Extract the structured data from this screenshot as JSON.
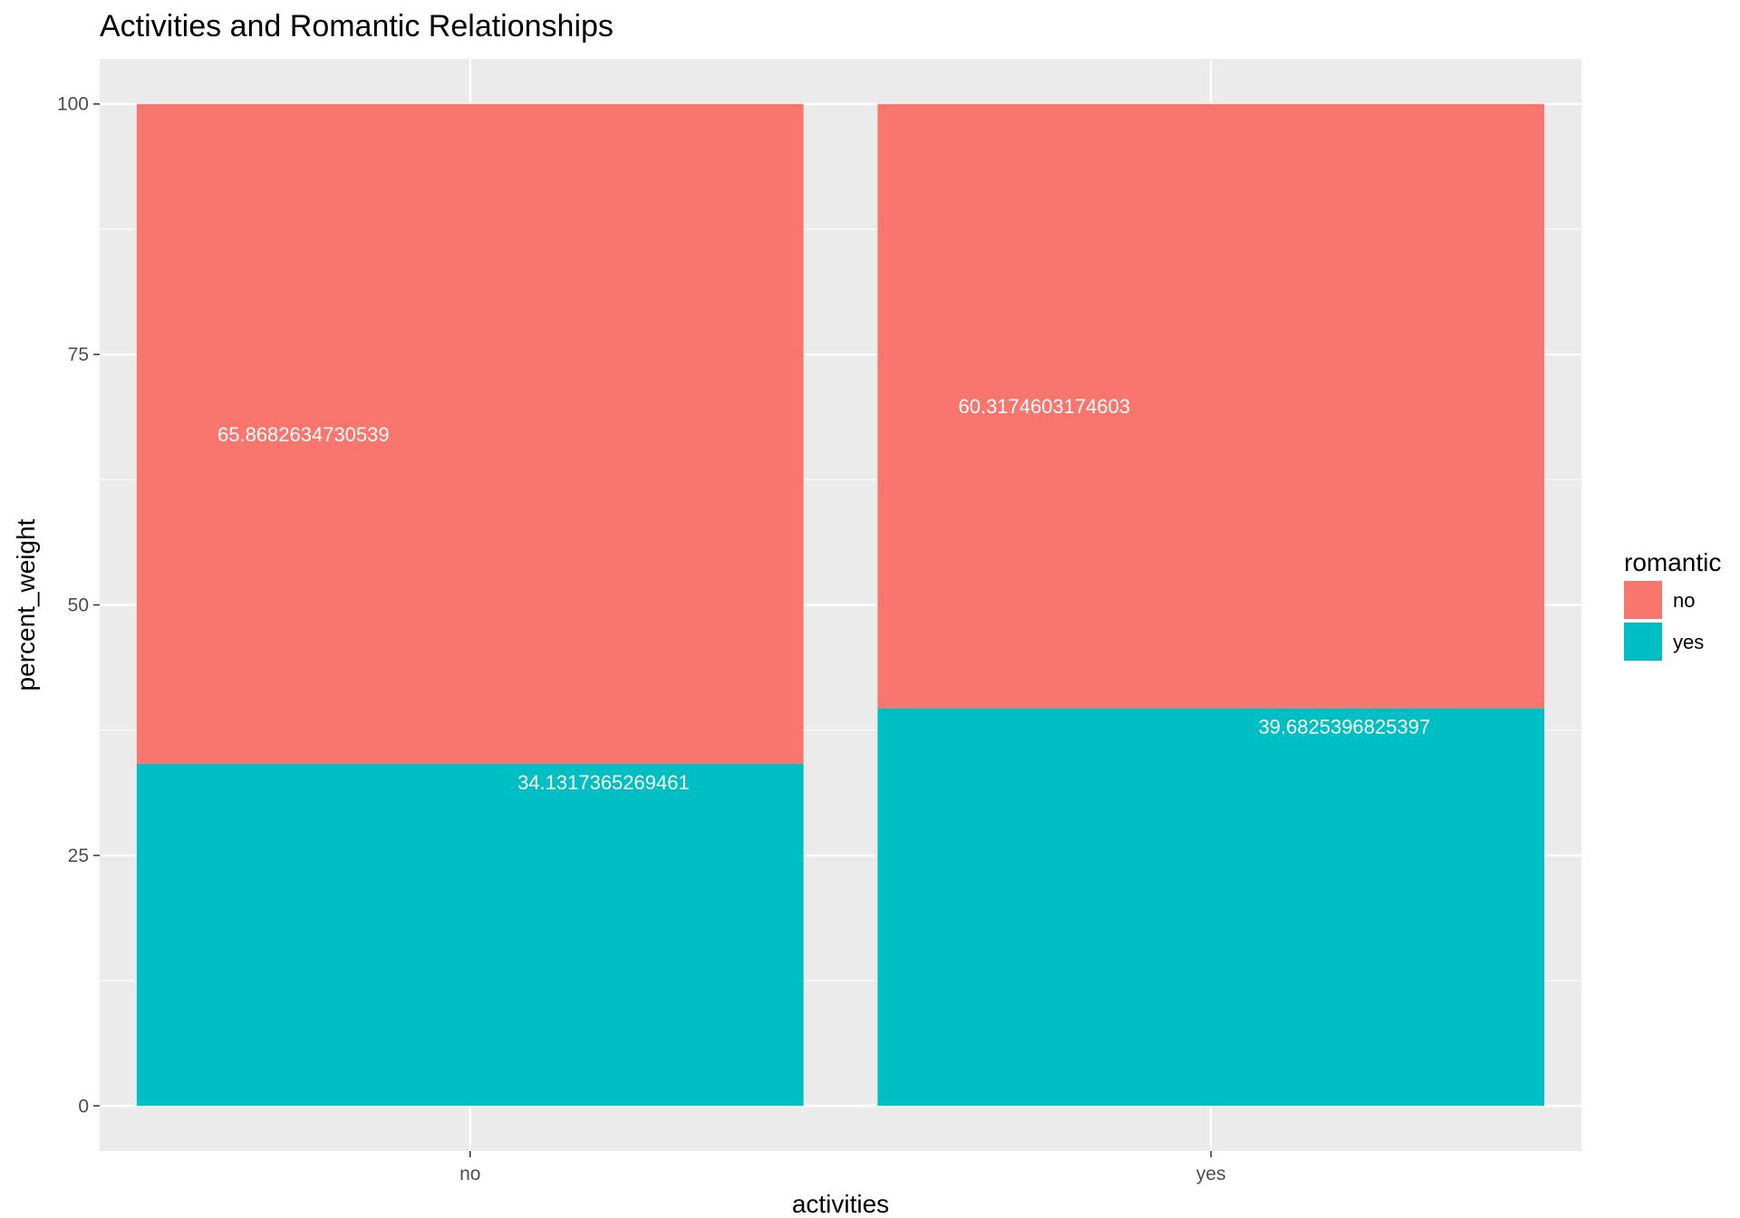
{
  "chart_data": {
    "type": "bar",
    "stacked": true,
    "title": "Activities and Romantic Relationships",
    "xlabel": "activities",
    "ylabel": "percent_weight",
    "categories": [
      "no",
      "yes"
    ],
    "ylim": [
      -4.5,
      104.5
    ],
    "yticks": [
      0,
      25,
      50,
      75,
      100
    ],
    "grid": true,
    "legend": {
      "title": "romantic",
      "position": "right"
    },
    "series": [
      {
        "name": "yes",
        "color": "#00BFC4",
        "values": [
          34.1317365269461,
          39.6825396825397
        ],
        "labels": [
          "34.1317365269461",
          "39.6825396825397"
        ]
      },
      {
        "name": "no",
        "color": "#F8766D",
        "values": [
          65.8682634730539,
          60.3174603174603
        ],
        "labels": [
          "65.8682634730539",
          "60.3174603174603"
        ]
      }
    ]
  }
}
